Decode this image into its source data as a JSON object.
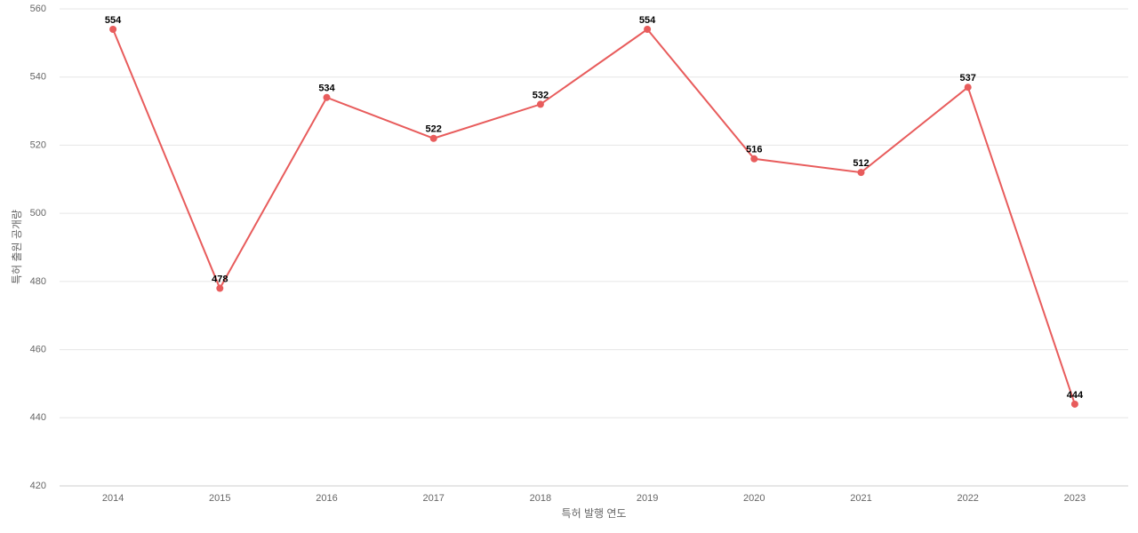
{
  "chart_data": {
    "type": "line",
    "x_label": "특허 발행 연도",
    "y_label": "특허 출원 공개량",
    "categories": [
      "2014",
      "2015",
      "2016",
      "2017",
      "2018",
      "2019",
      "2020",
      "2021",
      "2022",
      "2023"
    ],
    "values": [
      554,
      478,
      534,
      522,
      532,
      554,
      516,
      512,
      537,
      444
    ],
    "color": "#e85c5c",
    "ylim": [
      420,
      560
    ],
    "yticks": [
      420,
      440,
      460,
      480,
      500,
      520,
      540,
      560
    ],
    "grid": true
  }
}
